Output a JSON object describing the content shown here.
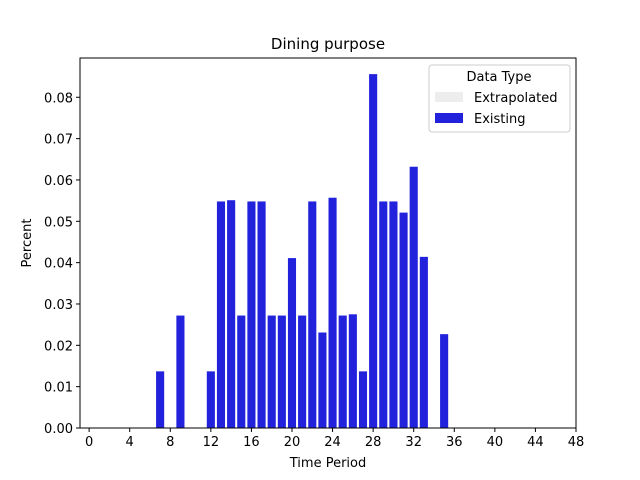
{
  "chart_data": {
    "type": "bar",
    "title": "Dining purpose",
    "xlabel": "Time Period",
    "ylabel": "Percent",
    "xlim": [
      -0.9,
      48.0
    ],
    "ylim": [
      0.0,
      0.0895
    ],
    "xticks": [
      0,
      4,
      8,
      12,
      16,
      20,
      24,
      28,
      32,
      36,
      40,
      44,
      48
    ],
    "yticks": [
      0.0,
      0.01,
      0.02,
      0.03,
      0.04,
      0.05,
      0.06,
      0.07,
      0.08
    ],
    "ytick_labels": [
      "0.00",
      "0.01",
      "0.02",
      "0.03",
      "0.04",
      "0.05",
      "0.06",
      "0.07",
      "0.08"
    ],
    "bar_width": 0.8,
    "grid": false,
    "legend": {
      "title": "Data Type",
      "placement": "top-right",
      "entries": [
        {
          "label": "Extrapolated",
          "color": "#ededed"
        },
        {
          "label": "Existing",
          "color": "#2222dd"
        }
      ]
    },
    "series": [
      {
        "name": "Existing",
        "color": "#2222dd",
        "x": [
          7,
          9,
          12,
          13,
          14,
          15,
          16,
          17,
          18,
          19,
          20,
          21,
          22,
          23,
          24,
          25,
          26,
          27,
          28,
          29,
          30,
          31,
          32,
          33,
          35
        ],
        "values": [
          0.0137,
          0.0272,
          0.0137,
          0.0548,
          0.0551,
          0.0272,
          0.0548,
          0.0548,
          0.0272,
          0.0272,
          0.0411,
          0.0272,
          0.0548,
          0.0231,
          0.0557,
          0.0272,
          0.0275,
          0.0137,
          0.0856,
          0.0548,
          0.0548,
          0.0521,
          0.0632,
          0.0414,
          0.0227
        ]
      }
    ]
  }
}
